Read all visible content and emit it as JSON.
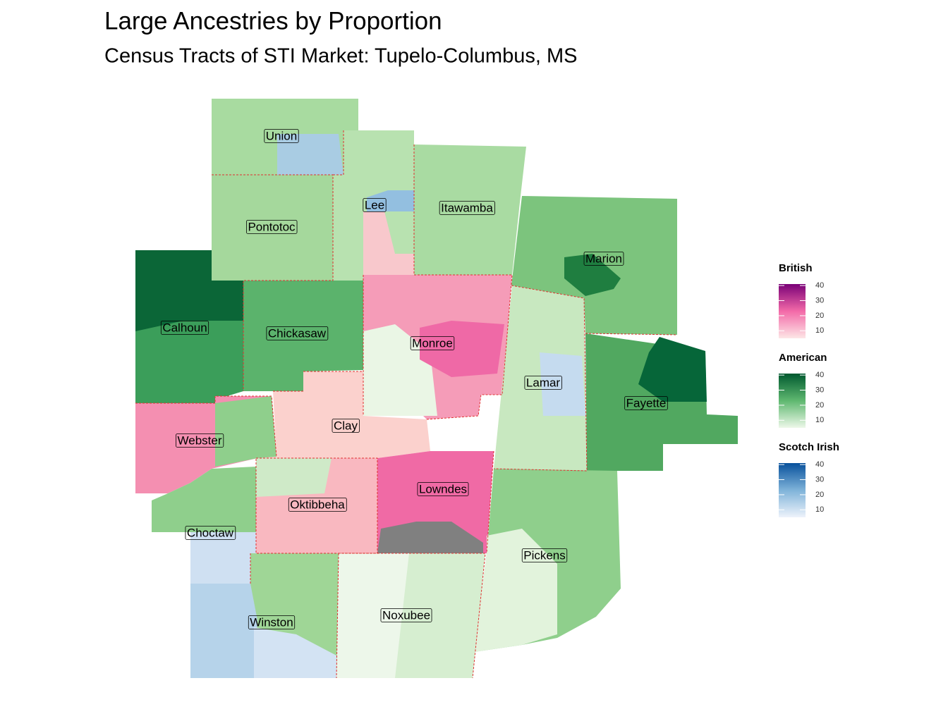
{
  "title": "Large Ancestries by Proportion",
  "subtitle": "Census Tracts of STI Market: Tupelo-Columbus, MS",
  "counties": [
    {
      "label": "Union"
    },
    {
      "label": "Lee"
    },
    {
      "label": "Itawamba"
    },
    {
      "label": "Pontotoc"
    },
    {
      "label": "Marion"
    },
    {
      "label": "Calhoun"
    },
    {
      "label": "Chickasaw"
    },
    {
      "label": "Monroe"
    },
    {
      "label": "Lamar"
    },
    {
      "label": "Fayette"
    },
    {
      "label": "Clay"
    },
    {
      "label": "Webster"
    },
    {
      "label": "Lowndes"
    },
    {
      "label": "Oktibbeha"
    },
    {
      "label": "Choctaw"
    },
    {
      "label": "Pickens"
    },
    {
      "label": "Noxubee"
    },
    {
      "label": "Winston"
    }
  ],
  "legend": [
    {
      "title": "British",
      "colors": [
        "#fde6e6",
        "#f36aa8",
        "#7a0177"
      ],
      "lim": [
        5,
        41
      ],
      "ticks": [
        10,
        20,
        30,
        40
      ]
    },
    {
      "title": "American",
      "colors": [
        "#edf8e9",
        "#5fb870",
        "#00592f"
      ],
      "lim": [
        5,
        41
      ],
      "ticks": [
        10,
        20,
        30,
        40
      ]
    },
    {
      "title": "Scotch Irish",
      "colors": [
        "#eef3fb",
        "#7fb3d9",
        "#08519c"
      ],
      "lim": [
        5,
        41
      ],
      "ticks": [
        10,
        20,
        30,
        40
      ]
    }
  ]
}
